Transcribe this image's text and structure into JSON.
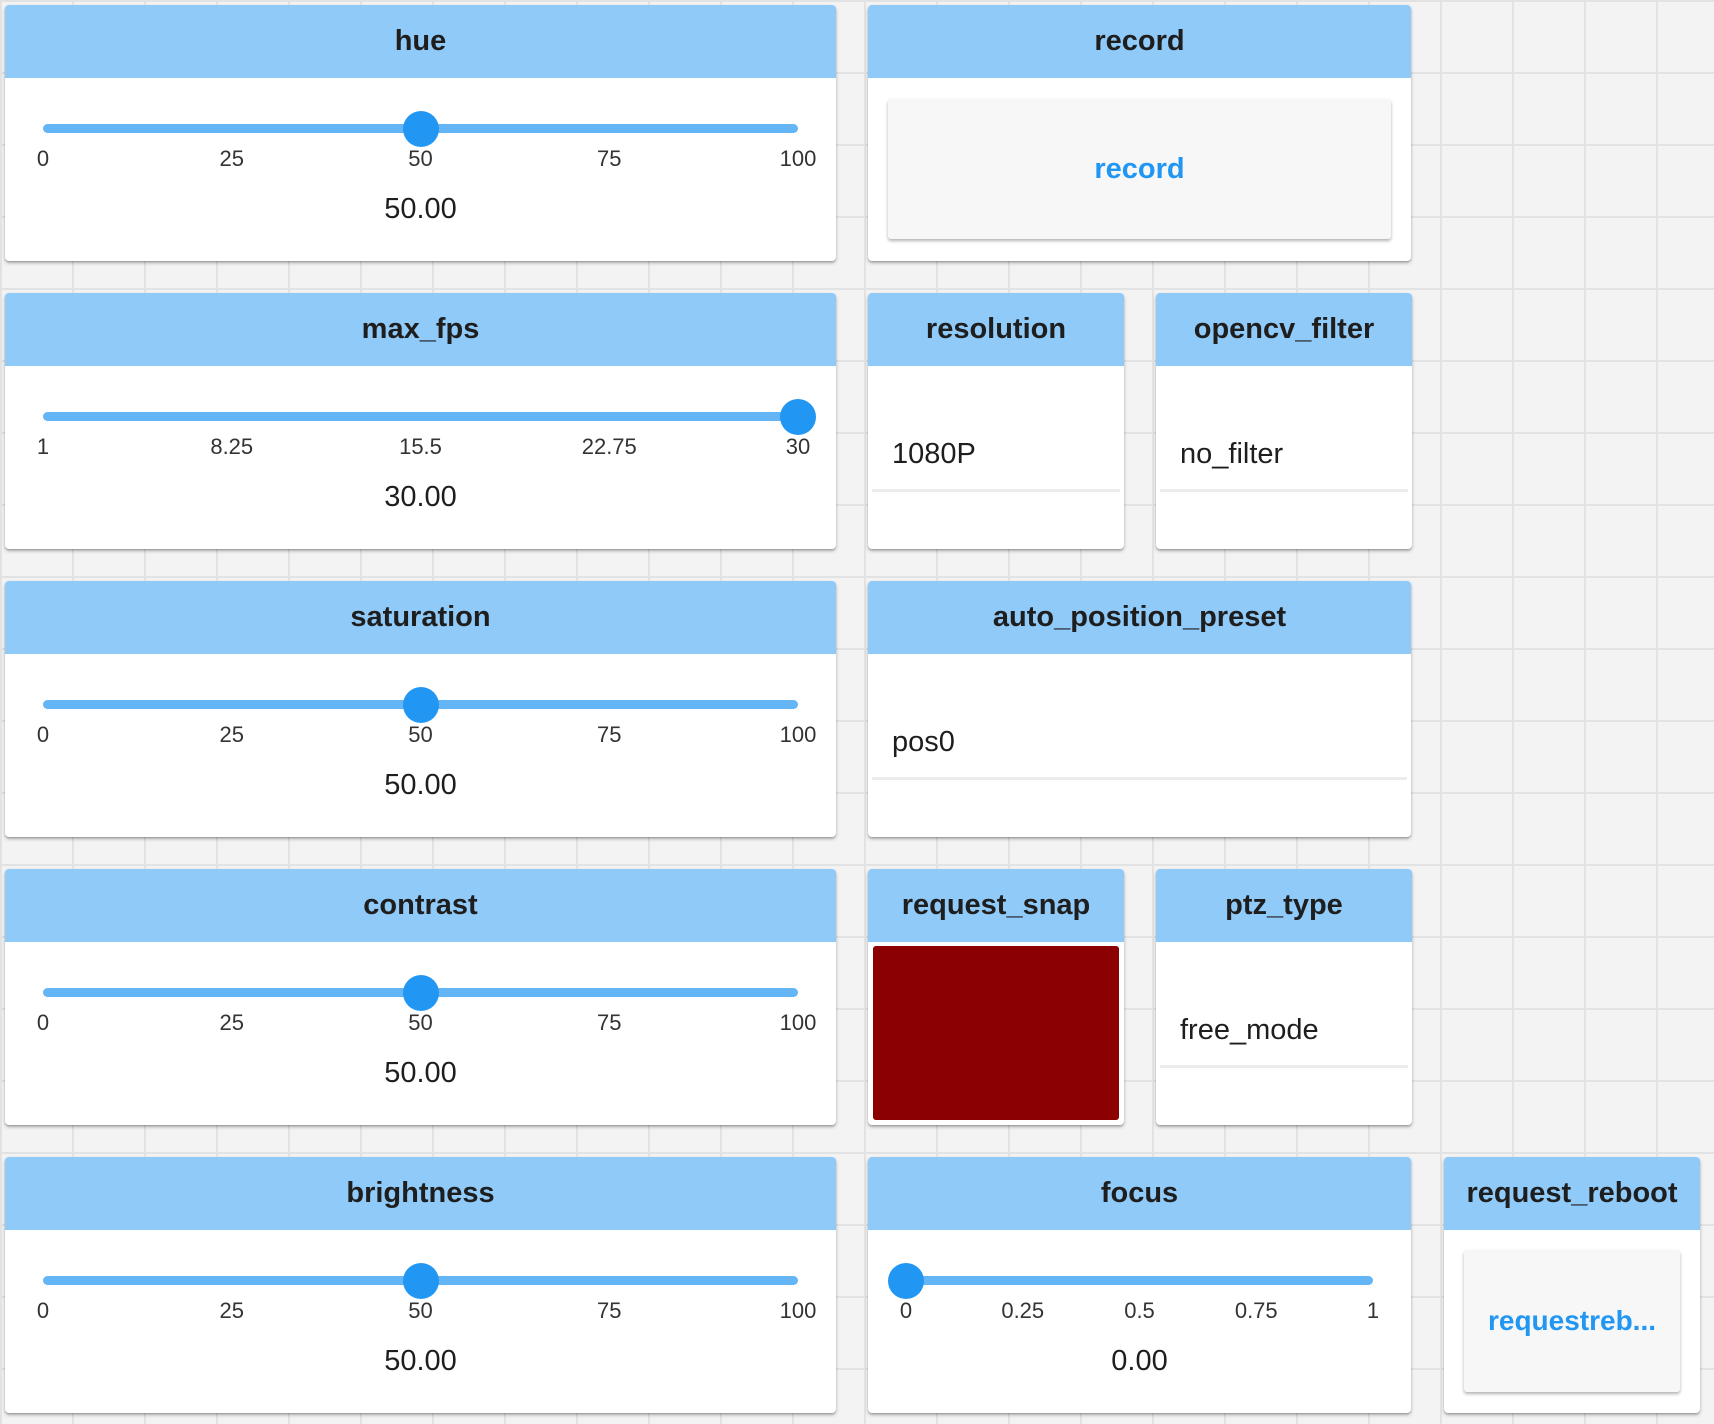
{
  "colors": {
    "header": "#90caf9",
    "accent": "#2196f3",
    "track": "#64b5f6",
    "snap_color": "#8b0000"
  },
  "widgets": {
    "hue": {
      "title": "hue",
      "min": 0,
      "max": 100,
      "value": 50,
      "value_text": "50.00",
      "ticks": [
        "0",
        "25",
        "50",
        "75",
        "100"
      ]
    },
    "max_fps": {
      "title": "max_fps",
      "min": 1,
      "max": 30,
      "value": 30,
      "value_text": "30.00",
      "ticks": [
        "1",
        "8.25",
        "15.5",
        "22.75",
        "30"
      ]
    },
    "saturation": {
      "title": "saturation",
      "min": 0,
      "max": 100,
      "value": 50,
      "value_text": "50.00",
      "ticks": [
        "0",
        "25",
        "50",
        "75",
        "100"
      ]
    },
    "contrast": {
      "title": "contrast",
      "min": 0,
      "max": 100,
      "value": 50,
      "value_text": "50.00",
      "ticks": [
        "0",
        "25",
        "50",
        "75",
        "100"
      ]
    },
    "brightness": {
      "title": "brightness",
      "min": 0,
      "max": 100,
      "value": 50,
      "value_text": "50.00",
      "ticks": [
        "0",
        "25",
        "50",
        "75",
        "100"
      ]
    },
    "focus": {
      "title": "focus",
      "min": 0,
      "max": 1,
      "value": 0,
      "value_text": "0.00",
      "ticks": [
        "0",
        "0.25",
        "0.5",
        "0.75",
        "1"
      ]
    },
    "record": {
      "title": "record",
      "button_label": "record"
    },
    "resolution": {
      "title": "resolution",
      "selected": "1080P"
    },
    "opencv_filter": {
      "title": "opencv_filter",
      "selected": "no_filter"
    },
    "auto_position_preset": {
      "title": "auto_position_preset",
      "selected": "pos0"
    },
    "request_snap": {
      "title": "request_snap"
    },
    "ptz_type": {
      "title": "ptz_type",
      "selected": "free_mode"
    },
    "request_reboot": {
      "title": "request_reboot",
      "button_label": "requestreb..."
    }
  }
}
